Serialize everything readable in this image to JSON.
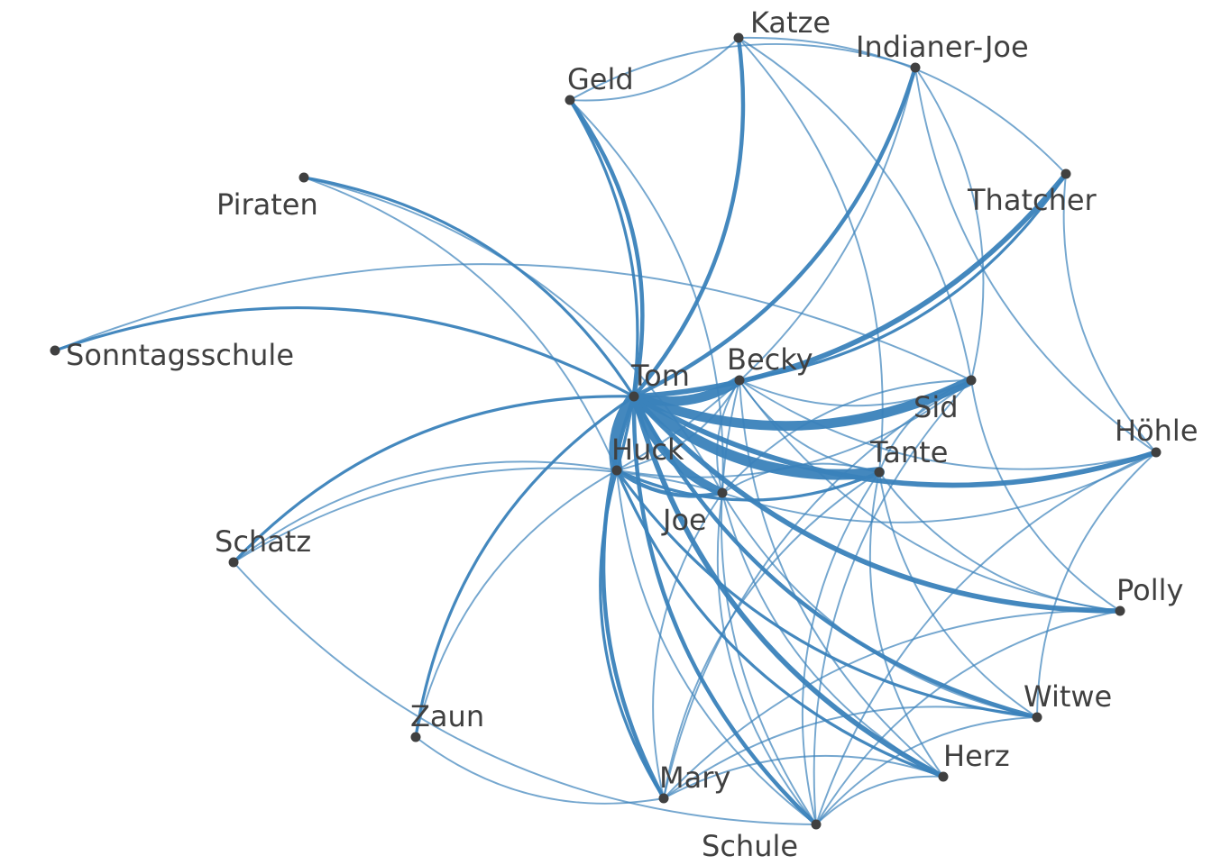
{
  "graph": {
    "edge_color": "#3a82ba",
    "node_color": "#404040",
    "label_color": "#404040",
    "nodes": [
      {
        "id": "Tom",
        "label": "Tom"
      },
      {
        "id": "Huck",
        "label": "Huck"
      },
      {
        "id": "Becky",
        "label": "Becky"
      },
      {
        "id": "Sid",
        "label": "Sid"
      },
      {
        "id": "Tante",
        "label": "Tante"
      },
      {
        "id": "Joe",
        "label": "Joe"
      },
      {
        "id": "Katze",
        "label": "Katze"
      },
      {
        "id": "Indianer-Joe",
        "label": "Indianer-Joe"
      },
      {
        "id": "Geld",
        "label": "Geld"
      },
      {
        "id": "Thatcher",
        "label": "Thatcher"
      },
      {
        "id": "Piraten",
        "label": "Piraten"
      },
      {
        "id": "Sonntagsschule",
        "label": "Sonntagsschule"
      },
      {
        "id": "Höhle",
        "label": "Höhle"
      },
      {
        "id": "Schatz",
        "label": "Schatz"
      },
      {
        "id": "Polly",
        "label": "Polly"
      },
      {
        "id": "Zaun",
        "label": "Zaun"
      },
      {
        "id": "Witwe",
        "label": "Witwe"
      },
      {
        "id": "Herz",
        "label": "Herz"
      },
      {
        "id": "Mary",
        "label": "Mary"
      },
      {
        "id": "Schule",
        "label": "Schule"
      }
    ],
    "edges": [
      {
        "source": "Tom",
        "target": "Huck",
        "weight": 10
      },
      {
        "source": "Tom",
        "target": "Becky",
        "weight": 8
      },
      {
        "source": "Tom",
        "target": "Sid",
        "weight": 8
      },
      {
        "source": "Tom",
        "target": "Tante",
        "weight": 9
      },
      {
        "source": "Tom",
        "target": "Joe",
        "weight": 7
      },
      {
        "source": "Tom",
        "target": "Katze",
        "weight": 3
      },
      {
        "source": "Tom",
        "target": "Indianer-Joe",
        "weight": 3
      },
      {
        "source": "Tom",
        "target": "Geld",
        "weight": 3
      },
      {
        "source": "Tom",
        "target": "Thatcher",
        "weight": 4
      },
      {
        "source": "Tom",
        "target": "Piraten",
        "weight": 2
      },
      {
        "source": "Tom",
        "target": "Sonntagsschule",
        "weight": 2
      },
      {
        "source": "Tom",
        "target": "Höhle",
        "weight": 4
      },
      {
        "source": "Tom",
        "target": "Schatz",
        "weight": 2
      },
      {
        "source": "Tom",
        "target": "Polly",
        "weight": 4
      },
      {
        "source": "Tom",
        "target": "Zaun",
        "weight": 2
      },
      {
        "source": "Tom",
        "target": "Witwe",
        "weight": 3
      },
      {
        "source": "Tom",
        "target": "Herz",
        "weight": 4
      },
      {
        "source": "Tom",
        "target": "Mary",
        "weight": 3
      },
      {
        "source": "Tom",
        "target": "Schule",
        "weight": 3
      },
      {
        "source": "Huck",
        "target": "Becky",
        "weight": 1
      },
      {
        "source": "Huck",
        "target": "Sid",
        "weight": 1
      },
      {
        "source": "Huck",
        "target": "Tante",
        "weight": 2
      },
      {
        "source": "Huck",
        "target": "Joe",
        "weight": 3
      },
      {
        "source": "Huck",
        "target": "Geld",
        "weight": 2
      },
      {
        "source": "Huck",
        "target": "Indianer-Joe",
        "weight": 1
      },
      {
        "source": "Huck",
        "target": "Schatz",
        "weight": 1
      },
      {
        "source": "Huck",
        "target": "Witwe",
        "weight": 2
      },
      {
        "source": "Huck",
        "target": "Herz",
        "weight": 2
      },
      {
        "source": "Huck",
        "target": "Mary",
        "weight": 2
      },
      {
        "source": "Huck",
        "target": "Schule",
        "weight": 1
      },
      {
        "source": "Huck",
        "target": "Zaun",
        "weight": 1
      },
      {
        "source": "Huck",
        "target": "Piraten",
        "weight": 1
      },
      {
        "source": "Becky",
        "target": "Thatcher",
        "weight": 2
      },
      {
        "source": "Becky",
        "target": "Sid",
        "weight": 1
      },
      {
        "source": "Becky",
        "target": "Tante",
        "weight": 1
      },
      {
        "source": "Becky",
        "target": "Joe",
        "weight": 1
      },
      {
        "source": "Becky",
        "target": "Höhle",
        "weight": 1
      },
      {
        "source": "Becky",
        "target": "Polly",
        "weight": 1
      },
      {
        "source": "Becky",
        "target": "Schule",
        "weight": 1
      },
      {
        "source": "Becky",
        "target": "Herz",
        "weight": 1
      },
      {
        "source": "Sid",
        "target": "Tante",
        "weight": 1
      },
      {
        "source": "Sid",
        "target": "Joe",
        "weight": 1
      },
      {
        "source": "Sid",
        "target": "Polly",
        "weight": 1
      },
      {
        "source": "Sid",
        "target": "Mary",
        "weight": 1
      },
      {
        "source": "Sid",
        "target": "Katze",
        "weight": 1
      },
      {
        "source": "Sid",
        "target": "Indianer-Joe",
        "weight": 1
      },
      {
        "source": "Sid",
        "target": "Sonntagsschule",
        "weight": 1
      },
      {
        "source": "Sid",
        "target": "Schule",
        "weight": 1
      },
      {
        "source": "Tante",
        "target": "Polly",
        "weight": 1
      },
      {
        "source": "Tante",
        "target": "Joe",
        "weight": 1
      },
      {
        "source": "Tante",
        "target": "Mary",
        "weight": 1
      },
      {
        "source": "Tante",
        "target": "Katze",
        "weight": 1
      },
      {
        "source": "Tante",
        "target": "Herz",
        "weight": 1
      },
      {
        "source": "Tante",
        "target": "Schule",
        "weight": 1
      },
      {
        "source": "Tante",
        "target": "Witwe",
        "weight": 1
      },
      {
        "source": "Joe",
        "target": "Piraten",
        "weight": 1
      },
      {
        "source": "Joe",
        "target": "Geld",
        "weight": 1
      },
      {
        "source": "Joe",
        "target": "Höhle",
        "weight": 1
      },
      {
        "source": "Joe",
        "target": "Schatz",
        "weight": 1
      },
      {
        "source": "Joe",
        "target": "Mary",
        "weight": 1
      },
      {
        "source": "Joe",
        "target": "Schule",
        "weight": 1
      },
      {
        "source": "Joe",
        "target": "Herz",
        "weight": 1
      },
      {
        "source": "Joe",
        "target": "Witwe",
        "weight": 1
      },
      {
        "source": "Indianer-Joe",
        "target": "Höhle",
        "weight": 1
      },
      {
        "source": "Indianer-Joe",
        "target": "Geld",
        "weight": 1
      },
      {
        "source": "Geld",
        "target": "Katze",
        "weight": 1
      },
      {
        "source": "Thatcher",
        "target": "Höhle",
        "weight": 1
      },
      {
        "source": "Thatcher",
        "target": "Katze",
        "weight": 1
      },
      {
        "source": "Höhle",
        "target": "Schule",
        "weight": 1
      },
      {
        "source": "Höhle",
        "target": "Witwe",
        "weight": 1
      },
      {
        "source": "Polly",
        "target": "Mary",
        "weight": 1
      },
      {
        "source": "Polly",
        "target": "Schule",
        "weight": 1
      },
      {
        "source": "Herz",
        "target": "Schule",
        "weight": 1
      },
      {
        "source": "Herz",
        "target": "Mary",
        "weight": 1
      },
      {
        "source": "Witwe",
        "target": "Schule",
        "weight": 1
      },
      {
        "source": "Witwe",
        "target": "Mary",
        "weight": 1
      },
      {
        "source": "Zaun",
        "target": "Mary",
        "weight": 1
      },
      {
        "source": "Schatz",
        "target": "Schule",
        "weight": 1
      }
    ]
  }
}
